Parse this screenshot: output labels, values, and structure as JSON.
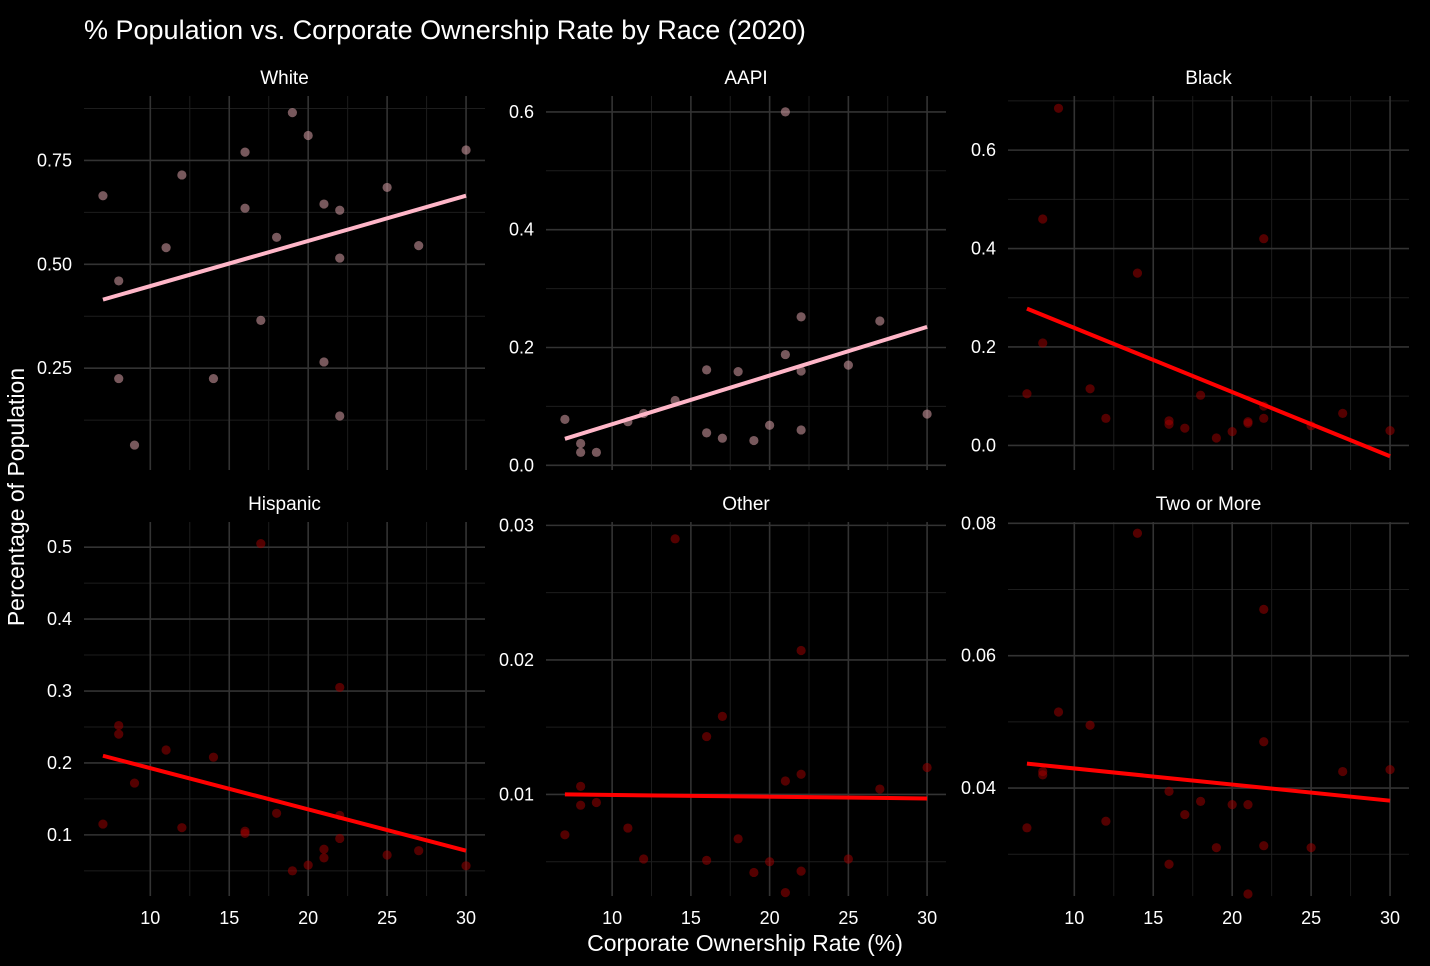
{
  "chart_data": {
    "type": "scatter",
    "title": "% Population vs. Corporate Ownership Rate by Race (2020)",
    "xlabel": "Corporate Ownership Rate (%)",
    "ylabel": "Percentage of Population",
    "grid": true,
    "xlim": [
      5.8,
      31.2
    ],
    "x_ticks": [
      "10",
      "15",
      "20",
      "25",
      "30"
    ],
    "panels": [
      {
        "name": "White",
        "ylim": [
          0.005,
          0.905
        ],
        "y_ticks": [
          0.25,
          0.5,
          0.75
        ],
        "y_tick_labels": [
          "0.25",
          "0.50",
          "0.75"
        ],
        "color": "#d9a0a8",
        "trend_color": "#ffb6c8",
        "trend": {
          "x": [
            7,
            30
          ],
          "y": [
            0.415,
            0.665
          ]
        },
        "points": [
          [
            7,
            0.665
          ],
          [
            8,
            0.46
          ],
          [
            8,
            0.225
          ],
          [
            9,
            0.065
          ],
          [
            11,
            0.54
          ],
          [
            12,
            0.715
          ],
          [
            14,
            0.225
          ],
          [
            16,
            0.77
          ],
          [
            16,
            0.635
          ],
          [
            17,
            0.365
          ],
          [
            18,
            0.565
          ],
          [
            19,
            0.865
          ],
          [
            20,
            0.81
          ],
          [
            21,
            0.265
          ],
          [
            21,
            0.645
          ],
          [
            22,
            0.63
          ],
          [
            22,
            0.515
          ],
          [
            22,
            0.135
          ],
          [
            25,
            0.685
          ],
          [
            27,
            0.545
          ],
          [
            30,
            0.775
          ]
        ]
      },
      {
        "name": "AAPI",
        "ylim": [
          -0.008,
          0.627
        ],
        "y_ticks": [
          0.0,
          0.2,
          0.4,
          0.6
        ],
        "y_tick_labels": [
          "0.0",
          "0.2",
          "0.4",
          "0.6"
        ],
        "color": "#d9a0a8",
        "trend_color": "#ffb6c8",
        "trend": {
          "x": [
            7,
            30
          ],
          "y": [
            0.045,
            0.235
          ]
        },
        "points": [
          [
            7,
            0.078
          ],
          [
            8,
            0.037
          ],
          [
            8,
            0.022
          ],
          [
            9,
            0.022
          ],
          [
            11,
            0.074
          ],
          [
            12,
            0.088
          ],
          [
            14,
            0.11
          ],
          [
            16,
            0.162
          ],
          [
            16,
            0.055
          ],
          [
            17,
            0.046
          ],
          [
            18,
            0.159
          ],
          [
            19,
            0.042
          ],
          [
            20,
            0.068
          ],
          [
            21,
            0.188
          ],
          [
            21,
            0.6
          ],
          [
            22,
            0.16
          ],
          [
            22,
            0.252
          ],
          [
            22,
            0.06
          ],
          [
            25,
            0.17
          ],
          [
            27,
            0.245
          ],
          [
            30,
            0.087
          ]
        ]
      },
      {
        "name": "Black",
        "ylim": [
          -0.05,
          0.71
        ],
        "y_ticks": [
          0.0,
          0.2,
          0.4,
          0.6
        ],
        "y_tick_labels": [
          "0.0",
          "0.2",
          "0.4",
          "0.6"
        ],
        "color": "#990000",
        "trend_color": "#ff0000",
        "trend": {
          "x": [
            7,
            30
          ],
          "y": [
            0.278,
            -0.022
          ]
        },
        "points": [
          [
            7,
            0.105
          ],
          [
            8,
            0.46
          ],
          [
            8,
            0.208
          ],
          [
            9,
            0.685
          ],
          [
            11,
            0.115
          ],
          [
            12,
            0.055
          ],
          [
            14,
            0.35
          ],
          [
            16,
            0.05
          ],
          [
            16,
            0.043
          ],
          [
            17,
            0.035
          ],
          [
            18,
            0.102
          ],
          [
            19,
            0.015
          ],
          [
            20,
            0.028
          ],
          [
            21,
            0.045
          ],
          [
            21,
            0.048
          ],
          [
            22,
            0.42
          ],
          [
            22,
            0.055
          ],
          [
            22,
            0.08
          ],
          [
            25,
            0.04
          ],
          [
            27,
            0.065
          ],
          [
            30,
            0.03
          ]
        ]
      },
      {
        "name": "Hispanic",
        "ylim": [
          0.015,
          0.535
        ],
        "y_ticks": [
          0.1,
          0.2,
          0.3,
          0.4,
          0.5
        ],
        "y_tick_labels": [
          "0.1",
          "0.2",
          "0.3",
          "0.4",
          "0.5"
        ],
        "color": "#990000",
        "trend_color": "#ff0000",
        "trend": {
          "x": [
            7,
            30
          ],
          "y": [
            0.21,
            0.078
          ]
        },
        "points": [
          [
            7,
            0.115
          ],
          [
            8,
            0.252
          ],
          [
            8,
            0.24
          ],
          [
            9,
            0.172
          ],
          [
            11,
            0.218
          ],
          [
            12,
            0.11
          ],
          [
            14,
            0.208
          ],
          [
            16,
            0.105
          ],
          [
            16,
            0.102
          ],
          [
            17,
            0.505
          ],
          [
            18,
            0.13
          ],
          [
            19,
            0.05
          ],
          [
            20,
            0.058
          ],
          [
            21,
            0.08
          ],
          [
            21,
            0.068
          ],
          [
            22,
            0.305
          ],
          [
            22,
            0.095
          ],
          [
            22,
            0.127
          ],
          [
            25,
            0.072
          ],
          [
            27,
            0.078
          ],
          [
            30,
            0.057
          ]
        ]
      },
      {
        "name": "Other",
        "ylim": [
          0.00245,
          0.03025
        ],
        "y_ticks": [
          0.01,
          0.02,
          0.03
        ],
        "y_tick_labels": [
          "0.01",
          "0.02",
          "0.03"
        ],
        "color": "#990000",
        "trend_color": "#ff0000",
        "trend": {
          "x": [
            7,
            30
          ],
          "y": [
            0.01,
            0.0097
          ]
        },
        "points": [
          [
            7,
            0.007
          ],
          [
            8,
            0.0106
          ],
          [
            8,
            0.0092
          ],
          [
            9,
            0.0094
          ],
          [
            11,
            0.0075
          ],
          [
            12,
            0.0052
          ],
          [
            14,
            0.029
          ],
          [
            16,
            0.0143
          ],
          [
            16,
            0.0051
          ],
          [
            17,
            0.0158
          ],
          [
            18,
            0.0067
          ],
          [
            19,
            0.0042
          ],
          [
            20,
            0.005
          ],
          [
            21,
            0.011
          ],
          [
            21,
            0.0027
          ],
          [
            22,
            0.0207
          ],
          [
            22,
            0.0115
          ],
          [
            22,
            0.0043
          ],
          [
            25,
            0.0052
          ],
          [
            27,
            0.0104
          ],
          [
            30,
            0.012
          ]
        ]
      },
      {
        "name": "Two or More",
        "ylim": [
          0.0237,
          0.0802
        ],
        "y_ticks": [
          0.04,
          0.06,
          0.08
        ],
        "y_tick_labels": [
          "0.04",
          "0.06",
          "0.08"
        ],
        "color": "#990000",
        "trend_color": "#ff0000",
        "trend": {
          "x": [
            7,
            30
          ],
          "y": [
            0.0437,
            0.0381
          ]
        },
        "points": [
          [
            7,
            0.034
          ],
          [
            8,
            0.042
          ],
          [
            8,
            0.0425
          ],
          [
            9,
            0.0515
          ],
          [
            11,
            0.0495
          ],
          [
            12,
            0.035
          ],
          [
            14,
            0.0785
          ],
          [
            16,
            0.0395
          ],
          [
            16,
            0.0285
          ],
          [
            17,
            0.036
          ],
          [
            18,
            0.038
          ],
          [
            19,
            0.031
          ],
          [
            20,
            0.0375
          ],
          [
            21,
            0.024
          ],
          [
            21,
            0.0375
          ],
          [
            22,
            0.067
          ],
          [
            22,
            0.047
          ],
          [
            22,
            0.0313
          ],
          [
            25,
            0.031
          ],
          [
            27,
            0.0425
          ],
          [
            30,
            0.0428
          ]
        ]
      }
    ]
  }
}
